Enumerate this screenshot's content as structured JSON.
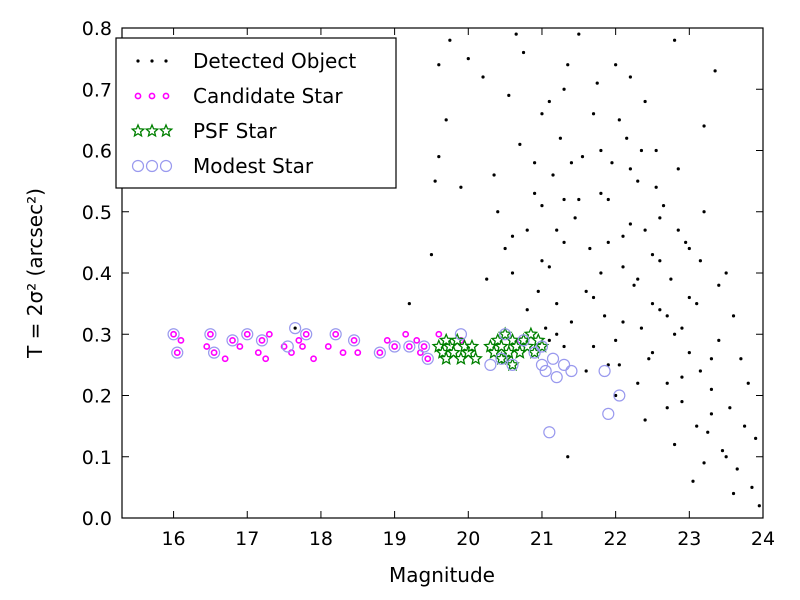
{
  "chart_data": {
    "type": "scatter",
    "xlabel": "Magnitude",
    "ylabel": "T = 2σ² (arcsec²)",
    "xlim": [
      15.3,
      24
    ],
    "ylim": [
      0.0,
      0.8
    ],
    "xticks": [
      "16",
      "17",
      "18",
      "19",
      "20",
      "21",
      "22",
      "23",
      "24"
    ],
    "yticks": [
      "0.0",
      "0.1",
      "0.2",
      "0.3",
      "0.4",
      "0.5",
      "0.6",
      "0.7",
      "0.8"
    ],
    "grid": false,
    "legend_position": "top-left",
    "series": [
      {
        "name": "Detected Object",
        "marker": "dot",
        "color": "#000000",
        "points": [
          [
            17.65,
            0.31
          ],
          [
            19.2,
            0.35
          ],
          [
            19.6,
            0.59
          ],
          [
            19.55,
            0.55
          ],
          [
            19.9,
            0.54
          ],
          [
            19.5,
            0.43
          ],
          [
            19.7,
            0.65
          ],
          [
            19.6,
            0.74
          ],
          [
            19.75,
            0.78
          ],
          [
            20.0,
            0.75
          ],
          [
            20.2,
            0.72
          ],
          [
            20.35,
            0.56
          ],
          [
            20.4,
            0.5
          ],
          [
            20.55,
            0.69
          ],
          [
            20.6,
            0.46
          ],
          [
            20.65,
            0.79
          ],
          [
            20.5,
            0.44
          ],
          [
            20.25,
            0.39
          ],
          [
            20.8,
            0.34
          ],
          [
            20.95,
            0.37
          ],
          [
            21.0,
            0.42
          ],
          [
            21.1,
            0.41
          ],
          [
            21.2,
            0.47
          ],
          [
            21.15,
            0.56
          ],
          [
            21.25,
            0.62
          ],
          [
            21.3,
            0.7
          ],
          [
            21.35,
            0.74
          ],
          [
            21.0,
            0.66
          ],
          [
            20.9,
            0.58
          ],
          [
            20.75,
            0.76
          ],
          [
            21.05,
            0.31
          ],
          [
            21.1,
            0.29
          ],
          [
            21.2,
            0.3
          ],
          [
            21.3,
            0.28
          ],
          [
            21.35,
            0.1
          ],
          [
            21.4,
            0.32
          ],
          [
            21.45,
            0.49
          ],
          [
            21.5,
            0.52
          ],
          [
            21.55,
            0.59
          ],
          [
            21.6,
            0.37
          ],
          [
            21.65,
            0.44
          ],
          [
            21.7,
            0.66
          ],
          [
            21.75,
            0.71
          ],
          [
            21.8,
            0.4
          ],
          [
            21.85,
            0.33
          ],
          [
            21.9,
            0.52
          ],
          [
            21.95,
            0.58
          ],
          [
            22.0,
            0.29
          ],
          [
            22.05,
            0.25
          ],
          [
            22.1,
            0.46
          ],
          [
            22.15,
            0.62
          ],
          [
            22.2,
            0.72
          ],
          [
            22.25,
            0.38
          ],
          [
            22.3,
            0.55
          ],
          [
            22.35,
            0.31
          ],
          [
            22.4,
            0.47
          ],
          [
            22.45,
            0.26
          ],
          [
            22.5,
            0.43
          ],
          [
            22.55,
            0.6
          ],
          [
            22.6,
            0.34
          ],
          [
            22.65,
            0.51
          ],
          [
            22.7,
            0.22
          ],
          [
            22.75,
            0.39
          ],
          [
            22.8,
            0.3
          ],
          [
            22.85,
            0.57
          ],
          [
            22.9,
            0.19
          ],
          [
            22.95,
            0.45
          ],
          [
            23.0,
            0.27
          ],
          [
            23.05,
            0.06
          ],
          [
            23.1,
            0.35
          ],
          [
            23.15,
            0.24
          ],
          [
            23.2,
            0.5
          ],
          [
            23.25,
            0.14
          ],
          [
            23.3,
            0.21
          ],
          [
            23.35,
            0.73
          ],
          [
            23.4,
            0.29
          ],
          [
            23.45,
            0.11
          ],
          [
            23.5,
            0.4
          ],
          [
            23.55,
            0.18
          ],
          [
            23.6,
            0.33
          ],
          [
            23.65,
            0.08
          ],
          [
            23.7,
            0.26
          ],
          [
            23.75,
            0.15
          ],
          [
            23.8,
            0.22
          ],
          [
            23.85,
            0.05
          ],
          [
            23.9,
            0.13
          ],
          [
            23.95,
            0.02
          ],
          [
            21.5,
            0.79
          ],
          [
            22.0,
            0.74
          ],
          [
            22.4,
            0.68
          ],
          [
            22.8,
            0.78
          ],
          [
            23.2,
            0.64
          ],
          [
            21.8,
            0.6
          ],
          [
            22.2,
            0.48
          ],
          [
            22.6,
            0.42
          ],
          [
            23.0,
            0.36
          ],
          [
            21.9,
            0.45
          ],
          [
            22.3,
            0.39
          ],
          [
            22.7,
            0.33
          ],
          [
            21.7,
            0.28
          ],
          [
            22.1,
            0.32
          ],
          [
            22.5,
            0.27
          ],
          [
            22.9,
            0.23
          ],
          [
            23.3,
            0.17
          ],
          [
            21.6,
            0.24
          ],
          [
            22.0,
            0.2
          ],
          [
            22.4,
            0.16
          ],
          [
            22.8,
            0.12
          ],
          [
            23.2,
            0.09
          ],
          [
            23.6,
            0.04
          ],
          [
            21.4,
            0.58
          ],
          [
            21.8,
            0.53
          ],
          [
            22.2,
            0.57
          ],
          [
            22.6,
            0.49
          ],
          [
            23.0,
            0.44
          ],
          [
            23.4,
            0.38
          ],
          [
            21.3,
            0.45
          ],
          [
            21.7,
            0.36
          ],
          [
            22.1,
            0.41
          ],
          [
            22.5,
            0.35
          ],
          [
            22.9,
            0.31
          ],
          [
            23.3,
            0.26
          ],
          [
            21.9,
            0.25
          ],
          [
            22.3,
            0.22
          ],
          [
            22.7,
            0.18
          ],
          [
            23.1,
            0.15
          ],
          [
            23.5,
            0.1
          ],
          [
            20.7,
            0.61
          ],
          [
            20.9,
            0.53
          ],
          [
            21.1,
            0.68
          ],
          [
            21.3,
            0.52
          ],
          [
            20.6,
            0.4
          ],
          [
            20.8,
            0.47
          ],
          [
            21.0,
            0.51
          ],
          [
            21.2,
            0.35
          ],
          [
            22.55,
            0.54
          ],
          [
            22.85,
            0.47
          ],
          [
            23.15,
            0.42
          ],
          [
            22.35,
            0.6
          ],
          [
            22.05,
            0.65
          ]
        ]
      },
      {
        "name": "Candidate Star",
        "marker": "small-circle",
        "color": "#ff00ff",
        "points": [
          [
            16.0,
            0.3
          ],
          [
            16.05,
            0.27
          ],
          [
            16.1,
            0.29
          ],
          [
            16.45,
            0.28
          ],
          [
            16.5,
            0.3
          ],
          [
            16.55,
            0.27
          ],
          [
            16.7,
            0.26
          ],
          [
            16.8,
            0.29
          ],
          [
            16.9,
            0.28
          ],
          [
            17.0,
            0.3
          ],
          [
            17.15,
            0.27
          ],
          [
            17.2,
            0.29
          ],
          [
            17.25,
            0.26
          ],
          [
            17.3,
            0.3
          ],
          [
            17.5,
            0.28
          ],
          [
            17.6,
            0.27
          ],
          [
            17.7,
            0.29
          ],
          [
            17.75,
            0.28
          ],
          [
            17.8,
            0.3
          ],
          [
            17.9,
            0.26
          ],
          [
            18.1,
            0.28
          ],
          [
            18.2,
            0.3
          ],
          [
            18.3,
            0.27
          ],
          [
            18.45,
            0.29
          ],
          [
            18.5,
            0.27
          ],
          [
            18.8,
            0.27
          ],
          [
            18.9,
            0.29
          ],
          [
            19.0,
            0.28
          ],
          [
            19.15,
            0.3
          ],
          [
            19.2,
            0.28
          ],
          [
            19.3,
            0.29
          ],
          [
            19.35,
            0.27
          ],
          [
            19.4,
            0.28
          ],
          [
            19.45,
            0.26
          ],
          [
            19.6,
            0.3
          ],
          [
            19.9,
            0.29
          ],
          [
            20.0,
            0.27
          ],
          [
            20.3,
            0.28
          ],
          [
            20.5,
            0.3
          ],
          [
            20.7,
            0.29
          ]
        ]
      },
      {
        "name": "PSF Star",
        "marker": "star",
        "color": "#008000",
        "points": [
          [
            19.6,
            0.28
          ],
          [
            19.65,
            0.27
          ],
          [
            19.7,
            0.26
          ],
          [
            19.75,
            0.28
          ],
          [
            19.8,
            0.27
          ],
          [
            19.85,
            0.29
          ],
          [
            19.9,
            0.26
          ],
          [
            19.95,
            0.28
          ],
          [
            20.0,
            0.27
          ],
          [
            20.05,
            0.28
          ],
          [
            20.1,
            0.26
          ],
          [
            20.3,
            0.28
          ],
          [
            20.35,
            0.27
          ],
          [
            20.4,
            0.29
          ],
          [
            20.45,
            0.28
          ],
          [
            20.5,
            0.26
          ],
          [
            20.55,
            0.27
          ],
          [
            20.6,
            0.29
          ],
          [
            20.65,
            0.28
          ],
          [
            20.7,
            0.27
          ],
          [
            20.75,
            0.29
          ],
          [
            20.8,
            0.28
          ],
          [
            20.85,
            0.3
          ],
          [
            20.9,
            0.27
          ],
          [
            20.95,
            0.29
          ],
          [
            21.0,
            0.28
          ],
          [
            20.5,
            0.3
          ],
          [
            20.6,
            0.25
          ],
          [
            20.45,
            0.26
          ],
          [
            19.7,
            0.29
          ]
        ]
      },
      {
        "name": "Modest Star",
        "marker": "open-circle",
        "color": "#9999ee",
        "points": [
          [
            16.0,
            0.3
          ],
          [
            16.05,
            0.27
          ],
          [
            16.5,
            0.3
          ],
          [
            16.55,
            0.27
          ],
          [
            16.8,
            0.29
          ],
          [
            17.0,
            0.3
          ],
          [
            17.2,
            0.29
          ],
          [
            17.55,
            0.28
          ],
          [
            17.65,
            0.31
          ],
          [
            17.8,
            0.3
          ],
          [
            18.2,
            0.3
          ],
          [
            18.45,
            0.29
          ],
          [
            18.8,
            0.27
          ],
          [
            19.0,
            0.28
          ],
          [
            19.2,
            0.28
          ],
          [
            19.4,
            0.28
          ],
          [
            19.45,
            0.26
          ],
          [
            19.9,
            0.3
          ],
          [
            20.3,
            0.25
          ],
          [
            20.45,
            0.26
          ],
          [
            20.6,
            0.25
          ],
          [
            20.9,
            0.27
          ],
          [
            21.0,
            0.25
          ],
          [
            21.05,
            0.24
          ],
          [
            21.1,
            0.14
          ],
          [
            21.15,
            0.26
          ],
          [
            21.2,
            0.23
          ],
          [
            21.3,
            0.25
          ],
          [
            21.4,
            0.24
          ],
          [
            21.85,
            0.24
          ],
          [
            21.9,
            0.17
          ],
          [
            22.05,
            0.2
          ],
          [
            20.5,
            0.3
          ],
          [
            20.75,
            0.29
          ],
          [
            21.0,
            0.28
          ]
        ]
      }
    ]
  }
}
